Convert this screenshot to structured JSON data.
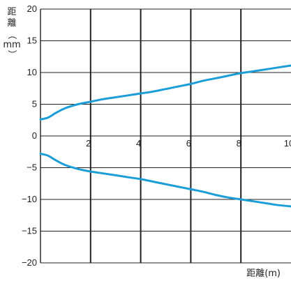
{
  "chart_data": {
    "type": "line",
    "xlabel": "距離(m)",
    "ylabel_chars": [
      "距",
      "離",
      "（",
      "mm",
      "）"
    ],
    "xlim": [
      0,
      10
    ],
    "ylim": [
      -20,
      20
    ],
    "x_ticks": [
      0,
      2,
      4,
      6,
      8,
      10
    ],
    "x_tick_labels": [
      "2",
      "4",
      "6",
      "8",
      "10"
    ],
    "y_ticks": [
      20,
      15,
      10,
      5,
      0,
      -5,
      -10,
      -15,
      -20
    ],
    "y_tick_labels": [
      "20",
      "15",
      "10",
      "5",
      "0",
      "−5",
      "−10",
      "−15",
      "−20"
    ],
    "grid": true,
    "line_color": "#1b9ed8",
    "grid_color": "#231f20",
    "series": [
      {
        "x": [
          0,
          0.3,
          0.6,
          1.0,
          1.5,
          2.0,
          2.5,
          3.0,
          3.5,
          4.0,
          4.5,
          5.0,
          5.5,
          6.0,
          6.5,
          7.0,
          7.5,
          8.0,
          8.5,
          9.0,
          9.5,
          10.0
        ],
        "y": [
          2.6,
          2.9,
          3.6,
          4.4,
          5.0,
          5.4,
          5.8,
          6.1,
          6.4,
          6.7,
          7.0,
          7.4,
          7.8,
          8.2,
          8.7,
          9.1,
          9.5,
          9.9,
          10.2,
          10.5,
          10.8,
          11.1
        ]
      },
      {
        "x": [
          0,
          0.3,
          0.6,
          1.0,
          1.5,
          2.0,
          2.5,
          3.0,
          3.5,
          4.0,
          4.5,
          5.0,
          5.5,
          6.0,
          6.5,
          7.0,
          7.5,
          8.0,
          8.5,
          9.0,
          9.5,
          10.0
        ],
        "y": [
          -2.8,
          -3.1,
          -3.8,
          -4.6,
          -5.2,
          -5.6,
          -5.9,
          -6.2,
          -6.5,
          -6.8,
          -7.2,
          -7.6,
          -8.0,
          -8.4,
          -8.8,
          -9.3,
          -9.7,
          -10.0,
          -10.3,
          -10.6,
          -10.9,
          -11.1
        ]
      }
    ]
  }
}
